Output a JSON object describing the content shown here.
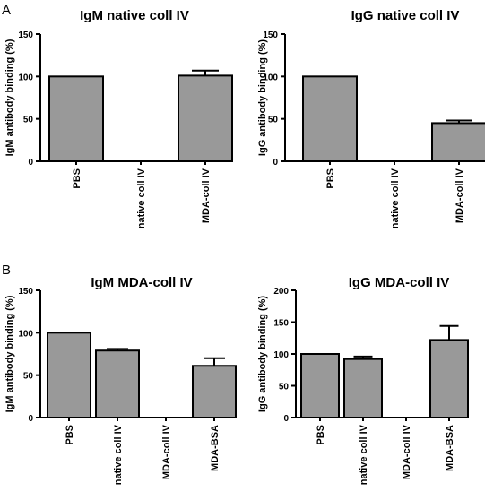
{
  "panels": [
    {
      "letter": "A"
    },
    {
      "letter": "B"
    }
  ],
  "chart_data": [
    {
      "type": "bar",
      "title": "IgM native coll IV",
      "ylabel": "IgM antibody binding (%)",
      "categories": [
        "PBS",
        "native coll IV",
        "MDA-coll IV"
      ],
      "values": [
        100,
        0,
        101
      ],
      "errors": [
        0,
        0,
        6
      ],
      "ylim": [
        0,
        150
      ],
      "yticks": [
        0,
        50,
        100,
        150
      ]
    },
    {
      "type": "bar",
      "title": "IgG native coll IV",
      "ylabel": "IgG antibody binding (%)",
      "categories": [
        "PBS",
        "native coll IV",
        "MDA-coll IV"
      ],
      "values": [
        100,
        0,
        45
      ],
      "errors": [
        0,
        0,
        3
      ],
      "ylim": [
        0,
        150
      ],
      "yticks": [
        0,
        50,
        100,
        150
      ]
    },
    {
      "type": "bar",
      "title": "IgM MDA-coll IV",
      "ylabel": "IgM antibody binding (%)",
      "categories": [
        "PBS",
        "native coll IV",
        "MDA-coll IV",
        "MDA-BSA"
      ],
      "values": [
        100,
        79,
        0,
        61
      ],
      "errors": [
        0,
        2,
        0,
        9
      ],
      "ylim": [
        0,
        150
      ],
      "yticks": [
        0,
        50,
        100,
        150
      ]
    },
    {
      "type": "bar",
      "title": "IgG MDA-coll IV",
      "ylabel": "IgG antibody binding (%)",
      "categories": [
        "PBS",
        "native coll IV",
        "MDA-coll IV",
        "MDA-BSA"
      ],
      "values": [
        100,
        92,
        0,
        122
      ],
      "errors": [
        0,
        4,
        0,
        22
      ],
      "ylim": [
        0,
        200
      ],
      "yticks": [
        0,
        50,
        100,
        150,
        200
      ]
    }
  ]
}
